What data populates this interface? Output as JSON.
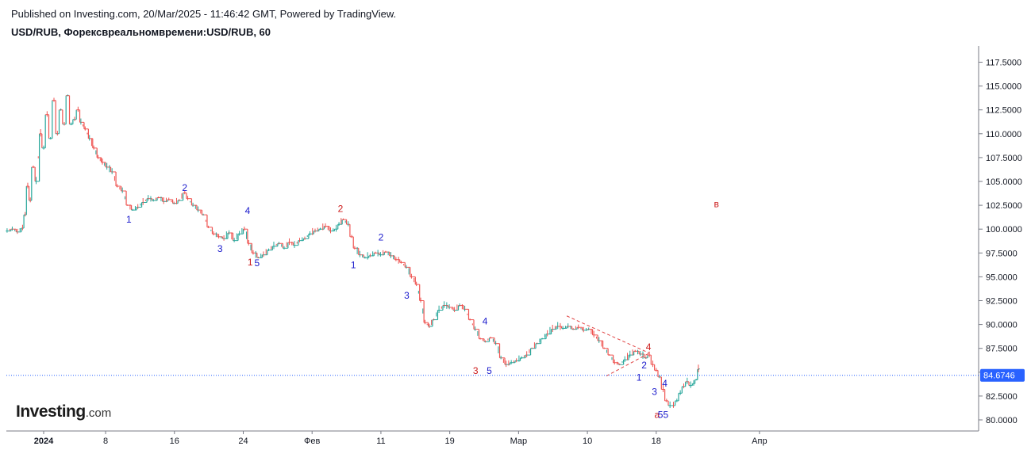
{
  "header": {
    "published": "Published on Investing.com, 20/Mar/2025 - 11:46:42 GMT, Powered by TradingView.",
    "symbol_title": "USD/RUB, Форексвреальномвремени:USD/RUB, 60"
  },
  "logo": {
    "brand": "Investing",
    "suffix": ".com"
  },
  "colors": {
    "up": "#26a69a",
    "down": "#ef5350",
    "wave_blue": "#1a1acc",
    "wave_red": "#cc1a1a",
    "price_line": "#2962ff",
    "price_label_bg": "#2962ff",
    "pattern_line": "#e04040"
  },
  "chart_data": {
    "type": "candlestick",
    "y_axis": {
      "min": 79.0,
      "max": 118.5,
      "ticks": [
        "117.5000",
        "115.0000",
        "112.5000",
        "110.0000",
        "107.5000",
        "105.0000",
        "102.5000",
        "100.0000",
        "97.5000",
        "95.0000",
        "92.5000",
        "90.0000",
        "87.5000",
        "85.0000",
        "82.5000",
        "80.0000"
      ]
    },
    "x_axis": {
      "ticks": [
        {
          "t": 0.8,
          "label": "2024",
          "bold": true
        },
        {
          "t": 8,
          "label": "8",
          "bold": false
        },
        {
          "t": 16,
          "label": "16",
          "bold": false
        },
        {
          "t": 24,
          "label": "24",
          "bold": false
        },
        {
          "t": 32,
          "label": "Фев",
          "bold": false
        },
        {
          "t": 40,
          "label": "11",
          "bold": false
        },
        {
          "t": 48,
          "label": "19",
          "bold": false
        },
        {
          "t": 56,
          "label": "Мар",
          "bold": false
        },
        {
          "t": 64,
          "label": "10",
          "bold": false
        },
        {
          "t": 72,
          "label": "18",
          "bold": false
        },
        {
          "t": 84,
          "label": "Апр",
          "bold": false
        }
      ]
    },
    "last_price": {
      "value": 84.6746,
      "label": "84.6746"
    },
    "price_path": [
      [
        -3.6,
        99.8
      ],
      [
        -3,
        100
      ],
      [
        -2.4,
        99.7
      ],
      [
        -1.8,
        100.1
      ],
      [
        -1.5,
        101.5
      ],
      [
        -1.2,
        104.5
      ],
      [
        -0.9,
        103
      ],
      [
        -0.6,
        106.5
      ],
      [
        -0.2,
        105
      ],
      [
        0.3,
        110
      ],
      [
        0.6,
        108.5
      ],
      [
        1,
        112
      ],
      [
        1.4,
        109.5
      ],
      [
        1.8,
        113.5
      ],
      [
        2.2,
        110
      ],
      [
        2.6,
        112.5
      ],
      [
        3,
        111
      ],
      [
        3.4,
        114
      ],
      [
        3.8,
        111
      ],
      [
        4.2,
        111.5
      ],
      [
        4.6,
        112.5
      ],
      [
        5,
        111.2
      ],
      [
        5.5,
        110.5
      ],
      [
        6,
        109.5
      ],
      [
        6.5,
        108.5
      ],
      [
        7,
        107.5
      ],
      [
        7.5,
        107
      ],
      [
        8,
        106.5
      ],
      [
        8.6,
        106
      ],
      [
        9.2,
        104.5
      ],
      [
        9.8,
        104
      ],
      [
        10.4,
        102.5
      ],
      [
        11,
        102
      ],
      [
        11.6,
        102.3
      ],
      [
        12.2,
        102.8
      ],
      [
        12.8,
        103.2
      ],
      [
        13.4,
        103
      ],
      [
        14,
        103.3
      ],
      [
        14.6,
        102.9
      ],
      [
        15.2,
        103.1
      ],
      [
        15.8,
        102.7
      ],
      [
        16.4,
        103
      ],
      [
        17,
        103.8
      ],
      [
        17.4,
        103.2
      ],
      [
        18,
        102.5
      ],
      [
        18.6,
        102
      ],
      [
        19.2,
        101.5
      ],
      [
        19.8,
        100.2
      ],
      [
        20.4,
        99.5
      ],
      [
        21,
        99.2
      ],
      [
        21.6,
        99
      ],
      [
        22.2,
        99.6
      ],
      [
        22.8,
        98.8
      ],
      [
        23.4,
        99.5
      ],
      [
        24,
        100
      ],
      [
        24.5,
        98.5
      ],
      [
        25,
        97.5
      ],
      [
        25.6,
        97
      ],
      [
        26.2,
        97.3
      ],
      [
        26.8,
        97.8
      ],
      [
        27.4,
        98.2
      ],
      [
        28,
        98.5
      ],
      [
        28.6,
        98
      ],
      [
        29.2,
        98.6
      ],
      [
        29.8,
        98.3
      ],
      [
        30.4,
        98.8
      ],
      [
        31,
        99
      ],
      [
        31.6,
        99.5
      ],
      [
        32.2,
        99.8
      ],
      [
        32.8,
        100
      ],
      [
        33.4,
        100.3
      ],
      [
        34,
        99.8
      ],
      [
        34.6,
        100
      ],
      [
        35,
        100.5
      ],
      [
        35.5,
        101
      ],
      [
        36,
        100.5
      ],
      [
        36.4,
        99.2
      ],
      [
        36.8,
        98
      ],
      [
        37.4,
        97.3
      ],
      [
        38,
        97
      ],
      [
        38.6,
        97.2
      ],
      [
        39.2,
        97.5
      ],
      [
        39.8,
        97.3
      ],
      [
        40.4,
        97.6
      ],
      [
        41,
        97.2
      ],
      [
        41.6,
        96.8
      ],
      [
        42.2,
        96.5
      ],
      [
        42.8,
        96
      ],
      [
        43.4,
        95
      ],
      [
        44,
        94.2
      ],
      [
        44.5,
        92.5
      ],
      [
        45,
        90.2
      ],
      [
        45.5,
        89.8
      ],
      [
        46,
        90.5
      ],
      [
        46.6,
        91.5
      ],
      [
        47.2,
        92
      ],
      [
        47.8,
        91.8
      ],
      [
        48.4,
        91.5
      ],
      [
        49,
        92
      ],
      [
        49.6,
        91.6
      ],
      [
        50.2,
        90.5
      ],
      [
        50.8,
        89.5
      ],
      [
        51.4,
        88.5
      ],
      [
        52,
        88.2
      ],
      [
        52.6,
        88.6
      ],
      [
        53.2,
        88
      ],
      [
        53.8,
        86.5
      ],
      [
        54.4,
        85.8
      ],
      [
        55,
        86
      ],
      [
        55.6,
        86.2
      ],
      [
        56.2,
        86.5
      ],
      [
        56.8,
        86.8
      ],
      [
        57.4,
        87.5
      ],
      [
        58,
        88
      ],
      [
        58.6,
        88.5
      ],
      [
        59.2,
        89
      ],
      [
        59.8,
        89.5
      ],
      [
        60.4,
        89.8
      ],
      [
        61,
        89.6
      ],
      [
        61.6,
        89.8
      ],
      [
        62.2,
        89.5
      ],
      [
        62.8,
        89.7
      ],
      [
        63.4,
        89.4
      ],
      [
        64,
        89.5
      ],
      [
        64.6,
        88.9
      ],
      [
        65.2,
        88.3
      ],
      [
        65.8,
        87.5
      ],
      [
        66.4,
        86.8
      ],
      [
        67,
        86
      ],
      [
        67.6,
        85.8
      ],
      [
        68.2,
        86.3
      ],
      [
        68.8,
        86.8
      ],
      [
        69.4,
        87.2
      ],
      [
        70,
        86.9
      ],
      [
        70.6,
        86.5
      ],
      [
        71,
        86.8
      ],
      [
        71.4,
        85.8
      ],
      [
        71.8,
        85.2
      ],
      [
        72.2,
        84.5
      ],
      [
        72.6,
        83.2
      ],
      [
        73,
        82
      ],
      [
        73.4,
        81.5
      ],
      [
        73.8,
        81.5
      ],
      [
        74.2,
        82
      ],
      [
        74.6,
        82.8
      ],
      [
        75,
        83.5
      ],
      [
        75.4,
        84
      ],
      [
        75.8,
        83.6
      ],
      [
        76.2,
        83.8
      ],
      [
        76.5,
        84.2
      ],
      [
        76.8,
        85.3
      ],
      [
        77,
        85.4
      ]
    ],
    "wave_labels": [
      {
        "t": 10.7,
        "v": 100.7,
        "text": "1",
        "color": "blue"
      },
      {
        "t": 17.2,
        "v": 104.0,
        "text": "2",
        "color": "blue"
      },
      {
        "t": 21.3,
        "v": 97.6,
        "text": "3",
        "color": "blue"
      },
      {
        "t": 24.5,
        "v": 101.6,
        "text": "4",
        "color": "blue"
      },
      {
        "t": 25.6,
        "v": 96.1,
        "text": "5",
        "color": "blue"
      },
      {
        "t": 24.8,
        "v": 96.2,
        "text": "1",
        "color": "red"
      },
      {
        "t": 35.3,
        "v": 101.8,
        "text": "2",
        "color": "red"
      },
      {
        "t": 36.8,
        "v": 95.9,
        "text": "1",
        "color": "blue"
      },
      {
        "t": 40.0,
        "v": 98.8,
        "text": "2",
        "color": "blue"
      },
      {
        "t": 43.0,
        "v": 92.7,
        "text": "3",
        "color": "blue"
      },
      {
        "t": 52.1,
        "v": 90.0,
        "text": "4",
        "color": "blue"
      },
      {
        "t": 51.0,
        "v": 84.8,
        "text": "3",
        "color": "red"
      },
      {
        "t": 52.6,
        "v": 84.8,
        "text": "5",
        "color": "blue"
      },
      {
        "t": 71.1,
        "v": 87.3,
        "text": "4",
        "color": "red"
      },
      {
        "t": 70.6,
        "v": 85.4,
        "text": "2",
        "color": "blue"
      },
      {
        "t": 70.0,
        "v": 84.1,
        "text": "1",
        "color": "blue"
      },
      {
        "t": 71.8,
        "v": 82.6,
        "text": "3",
        "color": "blue"
      },
      {
        "t": 73.0,
        "v": 83.5,
        "text": "4",
        "color": "blue"
      },
      {
        "t": 72.1,
        "v": 80.2,
        "text": "a",
        "color": "red"
      },
      {
        "t": 72.8,
        "v": 80.2,
        "text": "55",
        "color": "blue"
      },
      {
        "t": 79.0,
        "v": 102.3,
        "text": "в",
        "color": "red"
      }
    ],
    "pattern_lines": [
      {
        "from": [
          61.6,
          90.9
        ],
        "to": [
          71.2,
          87.0
        ]
      },
      {
        "from": [
          66.2,
          84.6
        ],
        "to": [
          71.2,
          87.0
        ]
      }
    ]
  }
}
